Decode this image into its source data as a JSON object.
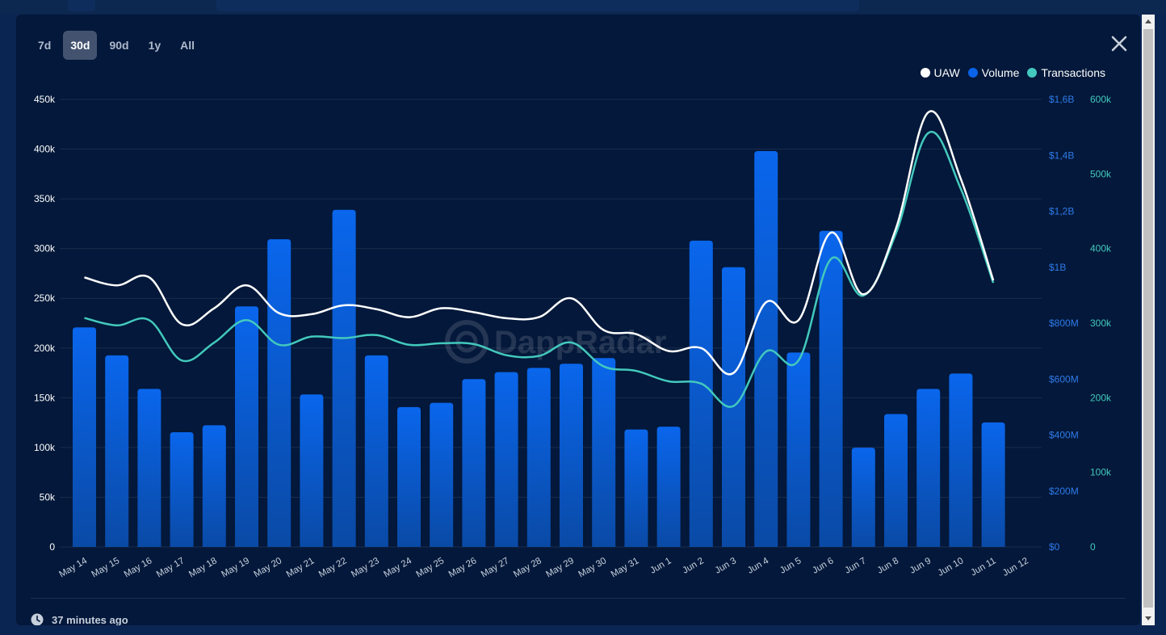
{
  "range_tabs": [
    {
      "label": "7d",
      "active": false
    },
    {
      "label": "30d",
      "active": true
    },
    {
      "label": "90d",
      "active": false
    },
    {
      "label": "1y",
      "active": false
    },
    {
      "label": "All",
      "active": false
    }
  ],
  "close_icon": "close-icon",
  "watermark": "DappRadar",
  "footer": {
    "updated_text": "37 minutes ago",
    "icon": "clock-icon"
  },
  "colors": {
    "background": "#03183a",
    "uaw": "#ffffff",
    "volume": "#0a63e8",
    "transactions": "#43c9bd",
    "left_axis_text": "#ffffff",
    "volume_axis_text": "#2f7bea",
    "tx_axis_text": "#43c9bd"
  },
  "chart_data": {
    "type": "bar",
    "categories": [
      "May 14",
      "May 15",
      "May 16",
      "May 17",
      "May 18",
      "May 19",
      "May 20",
      "May 21",
      "May 22",
      "May 23",
      "May 24",
      "May 25",
      "May 26",
      "May 27",
      "May 28",
      "May 29",
      "May 30",
      "May 31",
      "Jun 1",
      "Jun 2",
      "Jun 3",
      "Jun 4",
      "Jun 5",
      "Jun 6",
      "Jun 7",
      "Jun 8",
      "Jun 9",
      "Jun 10",
      "Jun 11",
      "Jun 12"
    ],
    "legend": [
      "UAW",
      "Volume",
      "Transactions"
    ],
    "legend_position": "top-right",
    "grid": true,
    "left_axis": {
      "ticks": [
        "0",
        "50k",
        "100k",
        "150k",
        "200k",
        "250k",
        "300k",
        "350k",
        "400k",
        "450k"
      ],
      "range": [
        0,
        450000
      ]
    },
    "volume_axis": {
      "ticks": [
        "$0",
        "$200M",
        "$400M",
        "$600M",
        "$800M",
        "$1B",
        "$1,2B",
        "$1,4B",
        "$1,6B"
      ],
      "range": [
        0,
        1600000000
      ]
    },
    "tx_axis": {
      "ticks": [
        "0",
        "100k",
        "200k",
        "300k",
        "400k",
        "500k",
        "600k"
      ],
      "range": [
        0,
        600000
      ]
    },
    "series": [
      {
        "name": "Volume",
        "type": "bar",
        "axis": "volume",
        "values": [
          785000000,
          685000000,
          565000000,
          410000000,
          435000000,
          860000000,
          1100000000,
          545000000,
          1205000000,
          685000000,
          500000000,
          515000000,
          600000000,
          625000000,
          640000000,
          655000000,
          675000000,
          420000000,
          430000000,
          1095000000,
          1000000000,
          1415000000,
          695000000,
          1130000000,
          355000000,
          475000000,
          565000000,
          620000000,
          445000000,
          null
        ]
      },
      {
        "name": "UAW",
        "type": "line",
        "axis": "left",
        "values": [
          271000,
          263000,
          271000,
          224000,
          240000,
          263000,
          235000,
          234000,
          243000,
          239000,
          231000,
          240000,
          236000,
          230000,
          231000,
          250000,
          218000,
          214000,
          197000,
          200000,
          175000,
          246000,
          228000,
          316000,
          254000,
          320000,
          437000,
          370000,
          268000,
          null
        ]
      },
      {
        "name": "Transactions",
        "type": "line",
        "axis": "tx",
        "values": [
          307000,
          297000,
          304000,
          250000,
          274000,
          304000,
          271000,
          282000,
          280000,
          284000,
          271000,
          273000,
          272000,
          257000,
          256000,
          274000,
          242000,
          236000,
          222000,
          219000,
          189000,
          262000,
          250000,
          386000,
          337000,
          420000,
          555000,
          480000,
          354000,
          null
        ]
      }
    ]
  }
}
